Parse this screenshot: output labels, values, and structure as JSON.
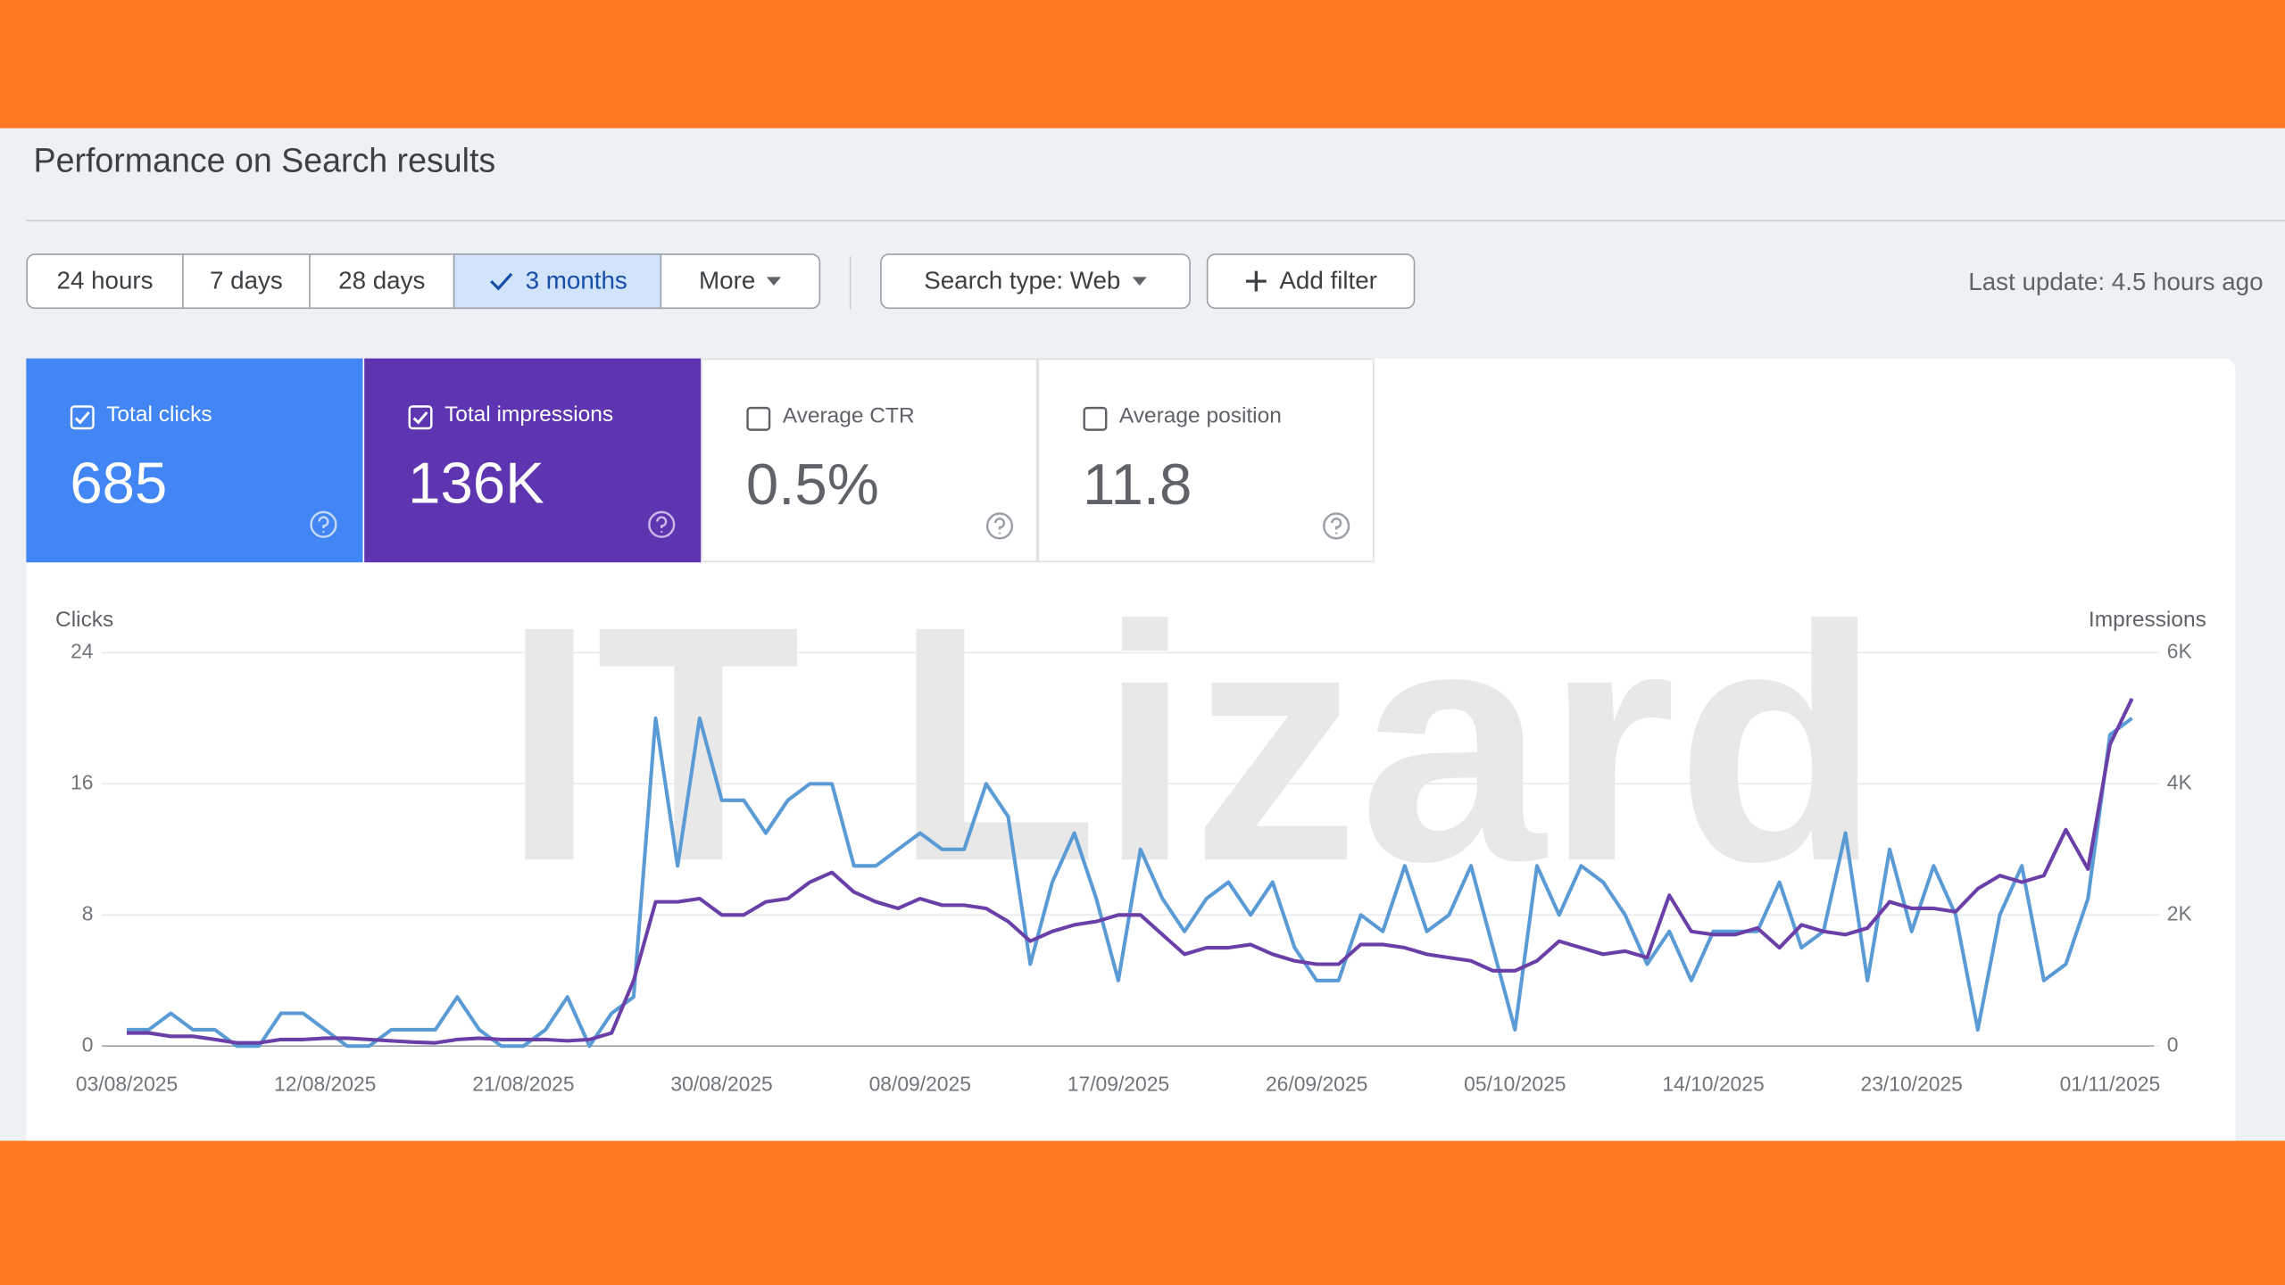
{
  "header": {
    "title": "Performance on Search results"
  },
  "date_ranges": [
    "24 hours",
    "7 days",
    "28 days",
    "3 months",
    "More"
  ],
  "filters": [
    "Search type: Web",
    "Add filter"
  ],
  "last_update": "Last update: 4.5 hours ago",
  "metrics": [
    {
      "label": "Total clicks",
      "value": "685"
    },
    {
      "label": "Total impressions",
      "value": "136K"
    },
    {
      "label": "Average CTR",
      "value": "0.5%"
    },
    {
      "label": "Average position",
      "value": "11.8"
    }
  ],
  "watermark": "IT Lizard",
  "chart_data": {
    "type": "line",
    "y_label": "Clicks",
    "y2_label": "Impressions",
    "categories": [
      "03/08/2025",
      null,
      null,
      null,
      null,
      null,
      null,
      null,
      null,
      "12/08/2025",
      null,
      null,
      null,
      null,
      null,
      null,
      null,
      null,
      "21/08/2025",
      null,
      null,
      null,
      null,
      null,
      null,
      null,
      null,
      "30/08/2025",
      null,
      null,
      null,
      null,
      null,
      null,
      null,
      null,
      "08/09/2025",
      null,
      null,
      null,
      null,
      null,
      null,
      null,
      null,
      "17/09/2025",
      null,
      null,
      null,
      null,
      null,
      null,
      null,
      null,
      "26/09/2025",
      null,
      null,
      null,
      null,
      null,
      null,
      null,
      null,
      "05/10/2025",
      null,
      null,
      null,
      null,
      null,
      null,
      null,
      null,
      "14/10/2025",
      null,
      null,
      null,
      null,
      null,
      null,
      null,
      null,
      "23/10/2025",
      null,
      null,
      null,
      null,
      null,
      null,
      null,
      null,
      "01/11/2025",
      null
    ],
    "series": [
      {
        "color": "#5b9bd5",
        "axis": "y",
        "values": [
          1,
          1,
          2,
          1,
          1,
          0,
          0,
          2,
          2,
          1,
          0,
          0,
          1,
          1,
          1,
          3,
          1,
          0,
          0,
          1,
          3,
          0,
          2,
          3,
          20,
          11,
          20,
          15,
          15,
          13,
          15,
          16,
          16,
          11,
          11,
          12,
          13,
          12,
          12,
          16,
          14,
          5,
          10,
          13,
          9,
          4,
          12,
          9,
          7,
          9,
          10,
          8,
          10,
          6,
          4,
          4,
          8,
          7,
          11,
          7,
          8,
          11,
          6,
          1,
          11,
          8,
          11,
          10,
          8,
          5,
          7,
          4,
          7,
          7,
          7,
          10,
          6,
          7,
          13,
          4,
          12,
          7,
          11,
          8,
          1,
          8,
          11,
          4,
          5,
          9,
          19,
          20
        ]
      },
      {
        "color": "#6a3fa8",
        "axis": "y2",
        "values": [
          200,
          200,
          150,
          150,
          100,
          50,
          50,
          100,
          100,
          120,
          120,
          100,
          80,
          60,
          50,
          100,
          120,
          100,
          100,
          100,
          80,
          100,
          200,
          1000,
          2200,
          2200,
          2250,
          2000,
          2000,
          2200,
          2250,
          2500,
          2650,
          2350,
          2200,
          2100,
          2250,
          2150,
          2150,
          2100,
          1900,
          1600,
          1750,
          1850,
          1900,
          2000,
          2000,
          1700,
          1400,
          1500,
          1500,
          1550,
          1400,
          1300,
          1250,
          1250,
          1550,
          1550,
          1500,
          1400,
          1350,
          1300,
          1150,
          1150,
          1300,
          1600,
          1500,
          1400,
          1450,
          1350,
          2300,
          1750,
          1700,
          1700,
          1800,
          1500,
          1850,
          1750,
          1700,
          1800,
          2200,
          2100,
          2100,
          2050,
          2400,
          2600,
          2500,
          2600,
          3300,
          2700,
          4600,
          5300
        ]
      }
    ],
    "ylim": [
      0,
      24
    ],
    "yticks": [
      0,
      8,
      16,
      24
    ],
    "y2lim": [
      0,
      6000
    ],
    "y2ticks": [
      0,
      {
        "value": 2000,
        "label": "2K"
      },
      {
        "value": 4000,
        "label": "4K"
      },
      {
        "value": 6000,
        "label": "6K"
      }
    ],
    "grid": true
  }
}
